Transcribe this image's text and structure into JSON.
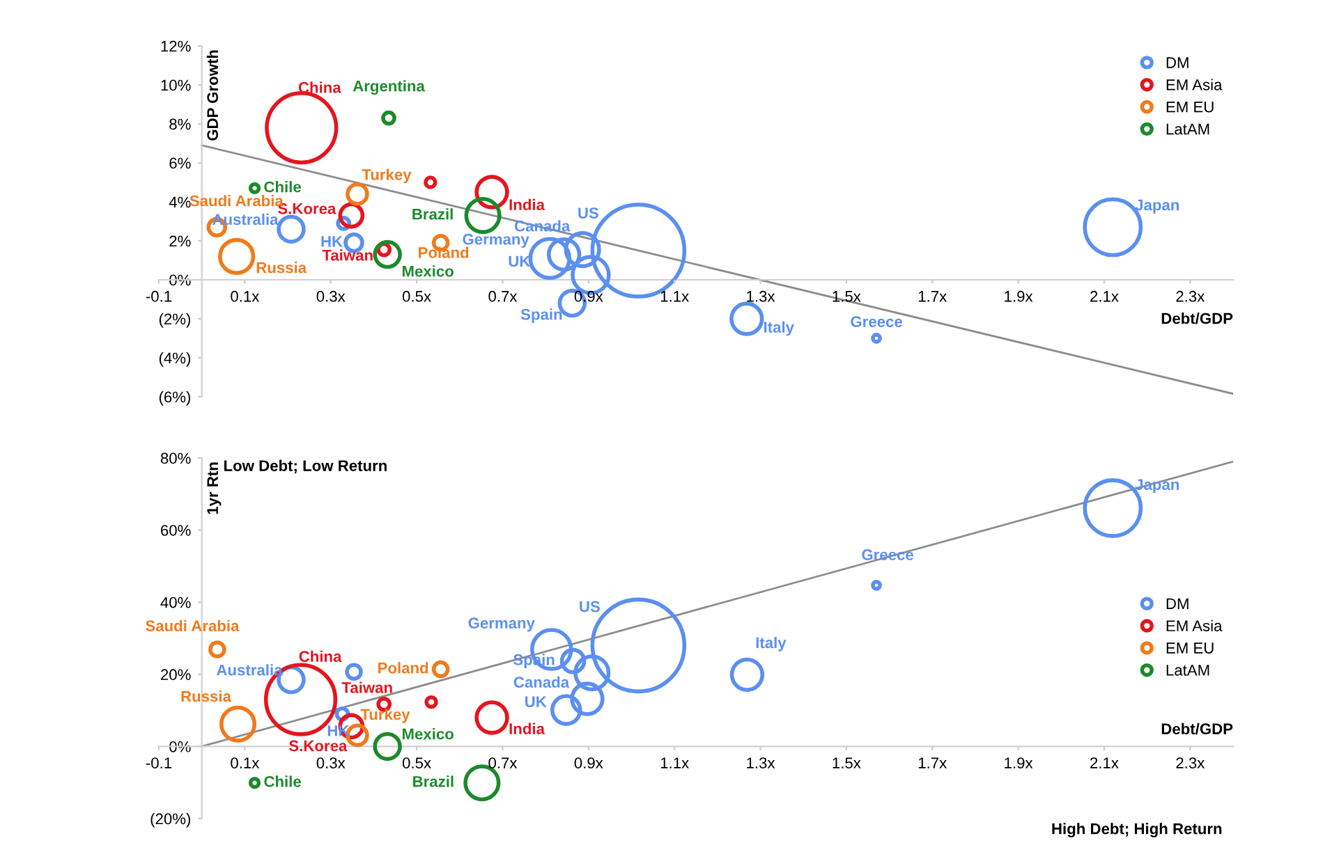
{
  "chart_data": [
    {
      "type": "bubble",
      "xlabel": "Debt/GDP",
      "ylabel": "GDP Growth",
      "legend": "top right",
      "xlim": [
        -0.1,
        2.4
      ],
      "ylim": [
        -6,
        12
      ],
      "xticks": [
        {
          "value": -0.1,
          "label": "-0.1"
        },
        {
          "value": 0.1,
          "label": "0.1x"
        },
        {
          "value": 0.3,
          "label": "0.3x"
        },
        {
          "value": 0.5,
          "label": "0.5x"
        },
        {
          "value": 0.7,
          "label": "0.7x"
        },
        {
          "value": 0.9,
          "label": "0.9x"
        },
        {
          "value": 1.1,
          "label": "1.1x"
        },
        {
          "value": 1.3,
          "label": "1.3x"
        },
        {
          "value": 1.5,
          "label": "1.5x"
        },
        {
          "value": 1.7,
          "label": "1.7x"
        },
        {
          "value": 1.9,
          "label": "1.9x"
        },
        {
          "value": 2.1,
          "label": "2.1x"
        },
        {
          "value": 2.3,
          "label": "2.3x"
        }
      ],
      "yticks": [
        {
          "value": -6,
          "label": "(6%)"
        },
        {
          "value": -4,
          "label": "(4%)"
        },
        {
          "value": -2,
          "label": "(2%)"
        },
        {
          "value": 0,
          "label": "0%"
        },
        {
          "value": 2,
          "label": "2%"
        },
        {
          "value": 4,
          "label": "4%"
        },
        {
          "value": 6,
          "label": "6%"
        },
        {
          "value": 8,
          "label": "8%"
        },
        {
          "value": 10,
          "label": "10%"
        },
        {
          "value": 12,
          "label": "12%"
        }
      ],
      "series": [
        {
          "name": "DM",
          "color": "#5b8ff0",
          "x": [
            0.208,
            0.354,
            0.33,
            0.81,
            0.843,
            0.886,
            0.905,
            1.016,
            0.862,
            1.268,
            1.57,
            2.12
          ],
          "values": [
            2.6,
            1.9,
            2.9,
            1.1,
            1.3,
            1.55,
            0.25,
            1.5,
            -1.2,
            -2.0,
            -3.0,
            2.7
          ],
          "sizes": [
            0.074,
            0.033,
            0.015,
            0.18,
            0.11,
            0.13,
            0.155,
            1,
            0.074,
            0.11,
            0.006,
            0.37
          ],
          "value_labels": [
            "Australia",
            "HK",
            null,
            "UK",
            "Germany",
            "Canada",
            null,
            "US",
            "Spain",
            "Italy",
            "Greece",
            "Japan"
          ]
        },
        {
          "name": "EM Asia",
          "color": "#e4151f",
          "x": [
            0.232,
            0.348,
            0.424,
            0.532,
            0.675
          ],
          "values": [
            7.8,
            3.3,
            1.55,
            5.0,
            4.5
          ],
          "sizes": [
            0.57,
            0.059,
            0.015,
            0.011,
            0.11
          ],
          "value_labels": [
            "China",
            "S.Korea",
            "Taiwan",
            null,
            "India"
          ]
        },
        {
          "name": "EM EU",
          "color": "#f07a1c",
          "x": [
            0.035,
            0.081,
            0.362,
            0.556
          ],
          "values": [
            2.7,
            1.2,
            4.4,
            1.9
          ],
          "sizes": [
            0.033,
            0.13,
            0.045,
            0.023
          ],
          "value_labels": [
            "Saudi Arabia",
            "Russia",
            "Turkey",
            "Poland"
          ]
        },
        {
          "name": "LatAM",
          "color": "#1c8a2c",
          "x": [
            0.435,
            0.123,
            0.432,
            0.654
          ],
          "values": [
            8.3,
            4.7,
            1.3,
            3.3
          ],
          "sizes": [
            0.015,
            0.008,
            0.074,
            0.13
          ],
          "value_labels": [
            "Argentina",
            "Chile",
            "Mexico",
            "Brazil"
          ]
        },
        {
          "type": "line",
          "color": "#8c8c8c",
          "x": [
            0,
            2.4
          ],
          "values": [
            6.9,
            -5.85
          ]
        }
      ]
    },
    {
      "type": "bubble",
      "xlabel": "Debt/GDP",
      "ylabel": "1yr Rtn",
      "legend": "center right",
      "xlim": [
        -0.1,
        2.4
      ],
      "ylim": [
        -20,
        80
      ],
      "xticks": [
        {
          "value": -0.1,
          "label": "-0.1"
        },
        {
          "value": 0.1,
          "label": "0.1x"
        },
        {
          "value": 0.3,
          "label": "0.3x"
        },
        {
          "value": 0.5,
          "label": "0.5x"
        },
        {
          "value": 0.7,
          "label": "0.7x"
        },
        {
          "value": 0.9,
          "label": "0.9x"
        },
        {
          "value": 1.1,
          "label": "1.1x"
        },
        {
          "value": 1.3,
          "label": "1.3x"
        },
        {
          "value": 1.5,
          "label": "1.5x"
        },
        {
          "value": 1.7,
          "label": "1.7x"
        },
        {
          "value": 1.9,
          "label": "1.9x"
        },
        {
          "value": 2.1,
          "label": "2.1x"
        },
        {
          "value": 2.3,
          "label": "2.3x"
        }
      ],
      "yticks": [
        {
          "value": -20,
          "label": "(20%)"
        },
        {
          "value": 0,
          "label": "0%"
        },
        {
          "value": 20,
          "label": "20%"
        },
        {
          "value": 40,
          "label": "40%"
        },
        {
          "value": 60,
          "label": "60%"
        },
        {
          "value": 80,
          "label": "80%"
        }
      ],
      "annotations": [
        "Low Debt; Low Return",
        "High Debt; High Return"
      ],
      "series": [
        {
          "name": "DM",
          "color": "#5b8ff0",
          "x": [
            0.208,
            0.327,
            0.354,
            0.814,
            0.864,
            0.908,
            0.897,
            0.848,
            1.016,
            1.269,
            1.57,
            2.12
          ],
          "values": [
            18.5,
            9,
            20.7,
            26.9,
            23.7,
            20.4,
            13.2,
            10.1,
            28,
            19.9,
            44.7,
            66.1
          ],
          "sizes": [
            0.074,
            0.015,
            0.023,
            0.18,
            0.059,
            0.13,
            0.11,
            0.092,
            1,
            0.11,
            0.006,
            0.37
          ],
          "value_labels": [
            "Australia",
            "HK",
            null,
            "Germany",
            "Spain",
            null,
            "Canada",
            "UK",
            "US",
            "Italy",
            "Greece",
            "Japan"
          ]
        },
        {
          "name": "EM Asia",
          "color": "#e4151f",
          "x": [
            0.23,
            0.424,
            0.534,
            0.348,
            0.675
          ],
          "values": [
            13,
            11.7,
            12.3,
            5.6,
            8
          ],
          "sizes": [
            0.57,
            0.015,
            0.011,
            0.059,
            0.11
          ],
          "value_labels": [
            "China",
            "Taiwan",
            null,
            "S.Korea",
            "India"
          ]
        },
        {
          "name": "EM EU",
          "color": "#f07a1c",
          "x": [
            0.036,
            0.084,
            0.362,
            0.556
          ],
          "values": [
            26.9,
            6.2,
            3.1,
            21.4
          ],
          "sizes": [
            0.023,
            0.13,
            0.045,
            0.023
          ],
          "value_labels": [
            "Saudi Arabia",
            "Russia",
            "Turkey",
            "Poland"
          ]
        },
        {
          "name": "LatAM",
          "color": "#1c8a2c",
          "x": [
            0.123,
            0.432,
            0.652
          ],
          "values": [
            -10.1,
            0,
            -10.1
          ],
          "sizes": [
            0.008,
            0.074,
            0.13
          ],
          "value_labels": [
            "Chile",
            "Mexico",
            "Brazil"
          ]
        },
        {
          "type": "line",
          "color": "#8c8c8c",
          "x": [
            0,
            2.4
          ],
          "values": [
            0,
            79
          ]
        }
      ]
    }
  ]
}
